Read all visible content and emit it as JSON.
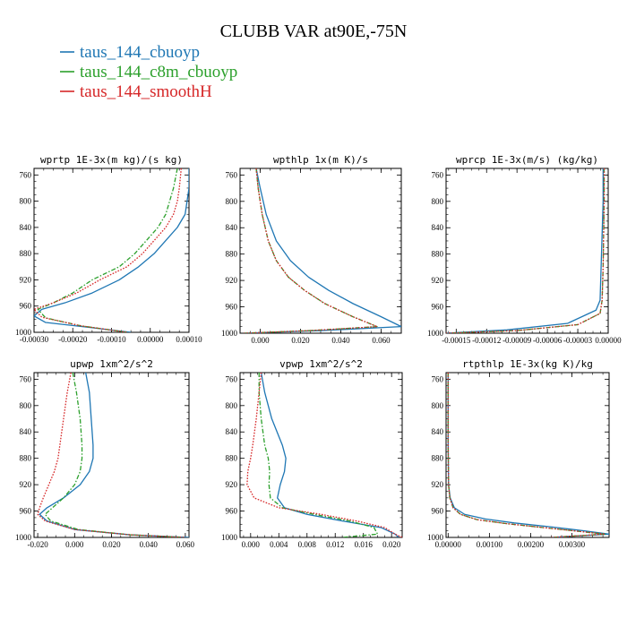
{
  "figure": {
    "title": "CLUBB VAR at90E,-75N"
  },
  "chart_data": {
    "type": "line",
    "title": "CLUBB VAR at90E,-75N",
    "legend": {
      "placement": "top-left",
      "entries": [
        {
          "name": "taus_144_cbuoyp",
          "color": "#1f77b4"
        },
        {
          "name": "taus_144_c8m_cbuoyp",
          "color": "#2ca02c"
        },
        {
          "name": "taus_144_smoothH",
          "color": "#d62728"
        }
      ]
    },
    "y_axis": {
      "ylim": [
        1000,
        750
      ],
      "inverted": true,
      "ticks": [
        760,
        800,
        840,
        880,
        920,
        960,
        1000
      ],
      "tick_labels": [
        "760",
        "800",
        "840",
        "880",
        "920",
        "960",
        "1000"
      ]
    },
    "panels": [
      {
        "id": "wprtp",
        "title": "wprtp  1E-3x(m kg)/(s kg)",
        "xlim": [
          -0.0003,
          0.0001
        ],
        "x_ticks": [
          -0.0003,
          -0.0002,
          -0.0001,
          0.0,
          0.0001
        ],
        "x_tick_labels": [
          "-0.00030",
          "-0.00020",
          "-0.00010",
          "0.00000",
          "0.00010"
        ],
        "series": [
          {
            "name": "taus_144_cbuoyp",
            "color": "#1f77b4",
            "dash": "solid",
            "x": [
              0.0001,
              0.0001,
              9.5e-05,
              9e-05,
              7e-05,
              4e-05,
              1e-05,
              -3e-05,
              -8e-05,
              -0.00015,
              -0.00022,
              -0.00028,
              -0.0003,
              -0.00027,
              -0.00015,
              -5e-05
            ],
            "y": [
              750,
              780,
              800,
              820,
              840,
              860,
              880,
              900,
              920,
              940,
              955,
              965,
              975,
              985,
              993,
              1000
            ]
          },
          {
            "name": "taus_144_c8m_cbuoyp",
            "color": "#2ca02c",
            "dash": "dashdot",
            "x": [
              7e-05,
              6e-05,
              5e-05,
              4e-05,
              2e-05,
              -1e-05,
              -4e-05,
              -8e-05,
              -0.00015,
              -0.0002,
              -0.00025,
              -0.00029,
              -0.00027,
              -0.00018,
              -6e-05
            ],
            "y": [
              750,
              780,
              800,
              820,
              840,
              860,
              880,
              900,
              920,
              940,
              955,
              965,
              978,
              990,
              1000
            ]
          },
          {
            "name": "taus_144_smoothH",
            "color": "#d62728",
            "dash": "dotted",
            "x": [
              8e-05,
              7.5e-05,
              7e-05,
              6e-05,
              4e-05,
              1e-05,
              -2e-05,
              -6e-05,
              -0.00013,
              -0.00019,
              -0.00025,
              -0.0003,
              -0.00028,
              -0.00018,
              -6e-05
            ],
            "y": [
              750,
              780,
              800,
              820,
              840,
              860,
              880,
              900,
              920,
              940,
              955,
              965,
              977,
              990,
              1000
            ]
          }
        ]
      },
      {
        "id": "wpthlp",
        "title": "wpthlp  1x(m K)/s",
        "xlim": [
          -0.01,
          0.07
        ],
        "x_ticks": [
          0.0,
          0.02,
          0.04,
          0.06
        ],
        "x_tick_labels": [
          "0.000",
          "0.020",
          "0.040",
          "0.060"
        ],
        "series": [
          {
            "name": "taus_144_cbuoyp",
            "color": "#1f77b4",
            "dash": "solid",
            "x": [
              -0.002,
              0.0,
              0.003,
              0.008,
              0.015,
              0.024,
              0.034,
              0.046,
              0.06,
              0.07,
              0.03,
              -0.008
            ],
            "y": [
              750,
              780,
              820,
              860,
              890,
              915,
              935,
              955,
              975,
              990,
              996,
              1000
            ]
          },
          {
            "name": "taus_144_c8m_cbuoyp",
            "color": "#2ca02c",
            "dash": "dashdot",
            "x": [
              -0.002,
              -0.001,
              0.001,
              0.004,
              0.008,
              0.014,
              0.022,
              0.032,
              0.046,
              0.058,
              0.025,
              -0.008
            ],
            "y": [
              750,
              780,
              820,
              860,
              890,
              915,
              935,
              955,
              975,
              990,
              996,
              1000
            ]
          },
          {
            "name": "taus_144_smoothH",
            "color": "#d62728",
            "dash": "dotted",
            "x": [
              -0.002,
              -0.001,
              0.001,
              0.004,
              0.008,
              0.014,
              0.022,
              0.032,
              0.046,
              0.058,
              0.025,
              -0.008
            ],
            "y": [
              750,
              780,
              820,
              860,
              890,
              915,
              935,
              955,
              975,
              990,
              996,
              1000
            ]
          }
        ]
      },
      {
        "id": "wprcp",
        "title": "wprcp  1E-3x(m/s) (kg/kg)",
        "xlim": [
          -0.00016,
          0.0
        ],
        "x_ticks": [
          -0.00015,
          -0.00012,
          -9e-05,
          -6e-05,
          -3e-05,
          0.0
        ],
        "x_tick_labels": [
          "-0.00015",
          "-0.00012",
          "-0.00009",
          "-0.00006",
          "-0.00003",
          "0.00000"
        ],
        "series": [
          {
            "name": "taus_144_cbuoyp",
            "color": "#1f77b4",
            "dash": "solid",
            "x": [
              -5e-06,
              -5e-06,
              -7e-06,
              -8e-06,
              -1.2e-05,
              -4e-05,
              -0.0001,
              -0.00016
            ],
            "y": [
              750,
              800,
              900,
              950,
              965,
              985,
              995,
              1000
            ]
          },
          {
            "name": "taus_144_c8m_cbuoyp",
            "color": "#2ca02c",
            "dash": "dashdot",
            "x": [
              -4e-06,
              -4e-06,
              -5e-06,
              -6e-06,
              -8e-06,
              -3e-05,
              -9e-05,
              -0.00016
            ],
            "y": [
              750,
              800,
              900,
              950,
              970,
              987,
              996,
              1000
            ]
          },
          {
            "name": "taus_144_smoothH",
            "color": "#d62728",
            "dash": "dotted",
            "x": [
              -4e-06,
              -4e-06,
              -5e-06,
              -6e-06,
              -8e-06,
              -3e-05,
              -9e-05,
              -0.00016
            ],
            "y": [
              750,
              800,
              900,
              950,
              970,
              987,
              996,
              1000
            ]
          }
        ]
      },
      {
        "id": "upwp",
        "title": "upwp  1xm^2/s^2",
        "xlim": [
          -0.022,
          0.062
        ],
        "x_ticks": [
          -0.02,
          0.0,
          0.02,
          0.04,
          0.06
        ],
        "x_tick_labels": [
          "-0.020",
          "0.000",
          "0.020",
          "0.040",
          "0.060"
        ],
        "series": [
          {
            "name": "taus_144_cbuoyp",
            "color": "#1f77b4",
            "dash": "solid",
            "x": [
              0.006,
              0.008,
              0.009,
              0.01,
              0.01,
              0.008,
              0.003,
              -0.006,
              -0.015,
              -0.019,
              -0.015,
              0.0,
              0.03,
              0.062
            ],
            "y": [
              750,
              780,
              820,
              860,
              880,
              900,
              920,
              940,
              955,
              965,
              975,
              988,
              996,
              1000
            ]
          },
          {
            "name": "taus_144_c8m_cbuoyp",
            "color": "#2ca02c",
            "dash": "dashdot",
            "x": [
              -0.001,
              0.001,
              0.003,
              0.004,
              0.004,
              0.003,
              0.0,
              -0.006,
              -0.012,
              -0.016,
              -0.013,
              0.002,
              0.03,
              0.06
            ],
            "y": [
              750,
              780,
              820,
              860,
              880,
              900,
              920,
              940,
              955,
              965,
              975,
              988,
              996,
              1000
            ]
          },
          {
            "name": "taus_144_smoothH",
            "color": "#d62728",
            "dash": "dotted",
            "x": [
              -0.002,
              -0.004,
              -0.006,
              -0.008,
              -0.009,
              -0.011,
              -0.014,
              -0.017,
              -0.019,
              -0.02,
              -0.016,
              0.0,
              0.03,
              0.06
            ],
            "y": [
              750,
              780,
              820,
              860,
              880,
              900,
              920,
              940,
              955,
              965,
              975,
              988,
              996,
              1000
            ]
          }
        ]
      },
      {
        "id": "vpwp",
        "title": "vpwp  1xm^2/s^2",
        "xlim": [
          -0.0015,
          0.0215
        ],
        "x_ticks": [
          0.0,
          0.004,
          0.008,
          0.012,
          0.016,
          0.02
        ],
        "x_tick_labels": [
          "0.000",
          "0.004",
          "0.008",
          "0.012",
          "0.016",
          "0.020"
        ],
        "series": [
          {
            "name": "taus_144_cbuoyp",
            "color": "#1f77b4",
            "dash": "solid",
            "x": [
              0.0015,
              0.002,
              0.003,
              0.0045,
              0.005,
              0.0048,
              0.0042,
              0.0038,
              0.0048,
              0.008,
              0.013,
              0.0185,
              0.0205,
              0.021
            ],
            "y": [
              750,
              780,
              820,
              860,
              880,
              900,
              920,
              940,
              955,
              965,
              975,
              985,
              995,
              1000
            ]
          },
          {
            "name": "taus_144_c8m_cbuoyp",
            "color": "#2ca02c",
            "dash": "dashdot",
            "x": [
              0.0012,
              0.0012,
              0.0015,
              0.002,
              0.0025,
              0.0027,
              0.0026,
              0.0028,
              0.0045,
              0.009,
              0.014,
              0.0175,
              0.018,
              0.013
            ],
            "y": [
              750,
              780,
              820,
              860,
              880,
              900,
              920,
              940,
              955,
              965,
              975,
              985,
              995,
              1000
            ]
          },
          {
            "name": "taus_144_smoothH",
            "color": "#d62728",
            "dash": "dotted",
            "x": [
              0.0015,
              0.0012,
              0.0008,
              0.0003,
              0.0,
              -0.0004,
              -0.0005,
              0.0005,
              0.004,
              0.01,
              0.015,
              0.019,
              0.0205,
              0.0215
            ],
            "y": [
              750,
              780,
              820,
              860,
              880,
              900,
              920,
              940,
              955,
              965,
              975,
              985,
              995,
              1000
            ]
          }
        ]
      },
      {
        "id": "rtpthlp",
        "title": "rtpthlp  1E-3x(kg K)/kg",
        "xlim": [
          -5e-05,
          0.0039
        ],
        "x_ticks": [
          0.0,
          0.001,
          0.002,
          0.003
        ],
        "x_tick_labels": [
          "0.00000",
          "0.00100",
          "0.00200",
          "0.00300"
        ],
        "series": [
          {
            "name": "taus_144_cbuoyp",
            "color": "#1f77b4",
            "dash": "solid",
            "x": [
              0.0,
              0.0,
              1e-05,
              5e-05,
              0.00015,
              0.0004,
              0.0009,
              0.0016,
              0.0025,
              0.0033,
              0.0039,
              0.0025
            ],
            "y": [
              750,
              850,
              920,
              940,
              955,
              965,
              972,
              978,
              984,
              990,
              995,
              1000
            ]
          },
          {
            "name": "taus_144_c8m_cbuoyp",
            "color": "#2ca02c",
            "dash": "dashdot",
            "x": [
              0.0,
              0.0,
              1e-05,
              4e-05,
              0.00012,
              0.0003,
              0.0007,
              0.0014,
              0.0023,
              0.0032,
              0.0038,
              0.0025
            ],
            "y": [
              750,
              850,
              920,
              940,
              955,
              965,
              973,
              979,
              985,
              991,
              995,
              1000
            ]
          },
          {
            "name": "taus_144_smoothH",
            "color": "#d62728",
            "dash": "dotted",
            "x": [
              0.0,
              0.0,
              1e-05,
              4e-05,
              0.00012,
              0.0003,
              0.0007,
              0.0014,
              0.0023,
              0.0032,
              0.0038,
              0.0025
            ],
            "y": [
              750,
              850,
              920,
              940,
              955,
              965,
              973,
              979,
              985,
              991,
              995,
              1000
            ]
          }
        ]
      }
    ]
  }
}
